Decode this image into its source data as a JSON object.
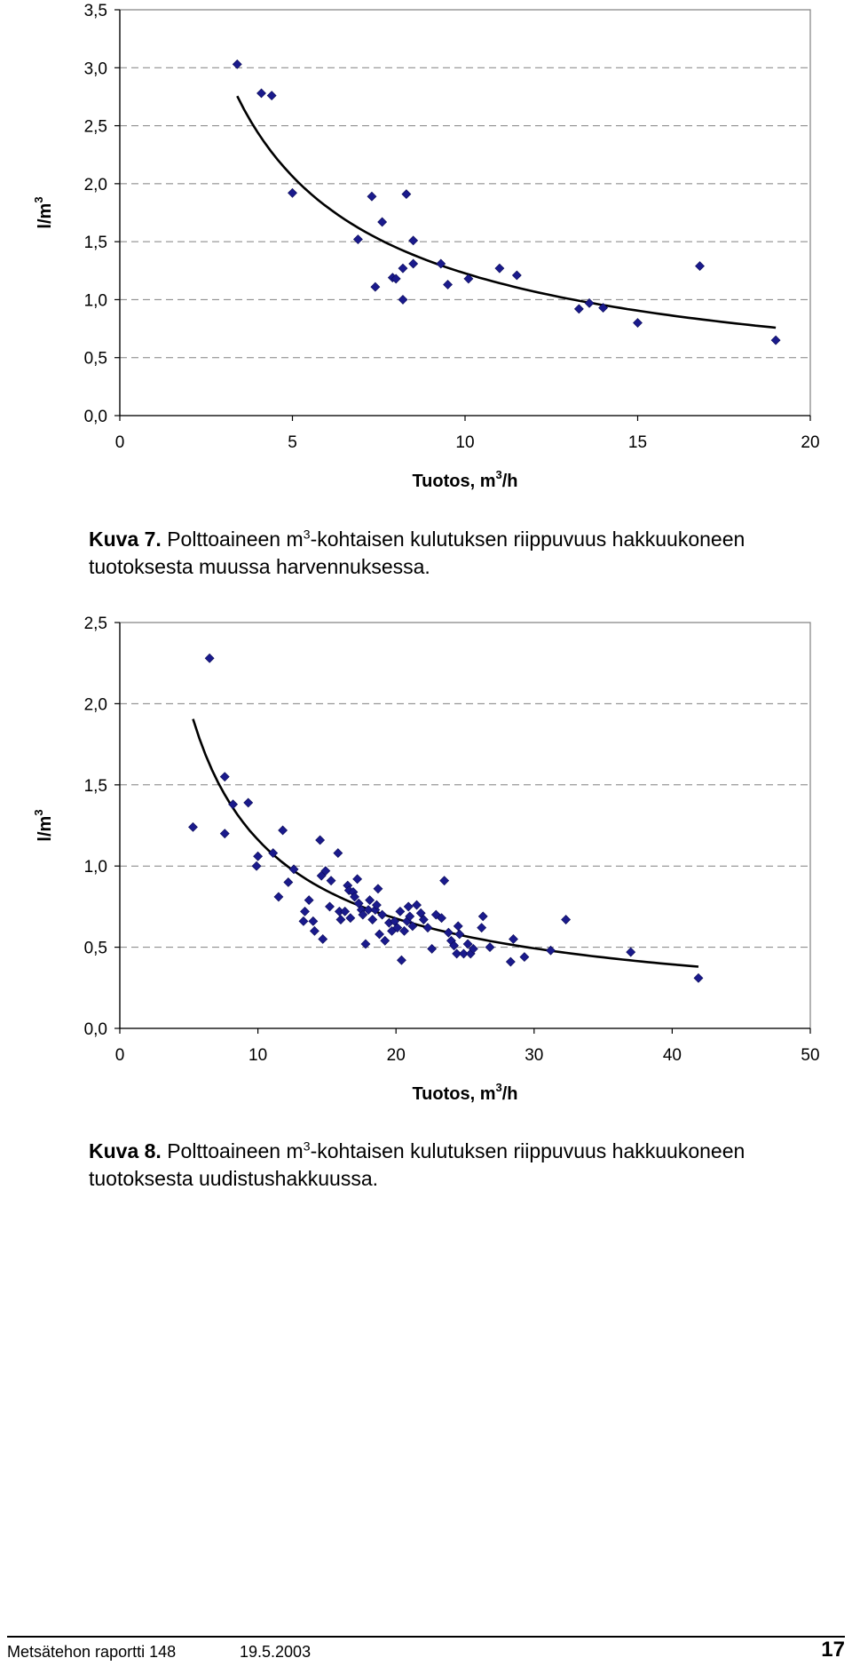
{
  "chart_data": [
    {
      "type": "scatter",
      "title": "",
      "xlabel": "Tuotos, m",
      "xlabel_sup": "3",
      "xlabel_suffix": "/h",
      "ylabel": "l/m",
      "ylabel_sup": "3",
      "xlim": [
        0,
        20
      ],
      "ylim": [
        0,
        3.5
      ],
      "xticks": [
        "0",
        "5",
        "10",
        "15",
        "20"
      ],
      "yticks": [
        "0,0",
        "0,5",
        "1,0",
        "1,5",
        "2,0",
        "2,5",
        "3,0",
        "3,5"
      ],
      "grid": "horizontal dashed",
      "marker_color": "#1a1a8c",
      "series": [
        {
          "points": [
            [
              3.4,
              3.03
            ],
            [
              4.1,
              2.78
            ],
            [
              4.4,
              2.76
            ],
            [
              5.0,
              1.92
            ],
            [
              6.9,
              1.52
            ],
            [
              7.3,
              1.89
            ],
            [
              7.4,
              1.11
            ],
            [
              7.6,
              1.67
            ],
            [
              7.9,
              1.19
            ],
            [
              8.0,
              1.18
            ],
            [
              8.2,
              1.0
            ],
            [
              8.2,
              1.27
            ],
            [
              8.3,
              1.91
            ],
            [
              8.5,
              1.51
            ],
            [
              8.5,
              1.31
            ],
            [
              9.3,
              1.31
            ],
            [
              9.5,
              1.13
            ],
            [
              10.1,
              1.18
            ],
            [
              11.0,
              1.27
            ],
            [
              11.5,
              1.21
            ],
            [
              13.3,
              0.92
            ],
            [
              13.6,
              0.97
            ],
            [
              14.0,
              0.93
            ],
            [
              15.0,
              0.8
            ],
            [
              16.8,
              1.29
            ],
            [
              19.0,
              0.65
            ]
          ]
        }
      ],
      "trendline": {
        "type": "power",
        "a": 6.9,
        "b": -0.75,
        "x_from": 3.4,
        "x_to": 19.0
      }
    },
    {
      "type": "scatter",
      "title": "",
      "xlabel": "Tuotos, m",
      "xlabel_sup": "3",
      "xlabel_suffix": "/h",
      "ylabel": "l/m",
      "ylabel_sup": "3",
      "xlim": [
        0,
        50
      ],
      "ylim": [
        0,
        2.5
      ],
      "xticks": [
        "0",
        "10",
        "20",
        "30",
        "40",
        "50"
      ],
      "yticks": [
        "0,0",
        "0,5",
        "1,0",
        "1,5",
        "2,0",
        "2,5"
      ],
      "grid": "horizontal dashed",
      "marker_color": "#1a1a8c",
      "series": [
        {
          "points": [
            [
              5.3,
              1.24
            ],
            [
              6.5,
              2.28
            ],
            [
              7.6,
              1.55
            ],
            [
              7.6,
              1.2
            ],
            [
              8.2,
              1.38
            ],
            [
              9.3,
              1.39
            ],
            [
              9.9,
              1.0
            ],
            [
              10.0,
              1.06
            ],
            [
              11.1,
              1.08
            ],
            [
              11.5,
              0.81
            ],
            [
              11.8,
              1.22
            ],
            [
              12.2,
              0.9
            ],
            [
              12.6,
              0.98
            ],
            [
              13.3,
              0.66
            ],
            [
              13.4,
              0.72
            ],
            [
              13.7,
              0.79
            ],
            [
              14.0,
              0.66
            ],
            [
              14.1,
              0.6
            ],
            [
              14.5,
              1.16
            ],
            [
              14.6,
              0.94
            ],
            [
              14.7,
              0.55
            ],
            [
              14.9,
              0.97
            ],
            [
              15.2,
              0.75
            ],
            [
              15.3,
              0.91
            ],
            [
              15.8,
              1.08
            ],
            [
              15.9,
              0.72
            ],
            [
              16.0,
              0.67
            ],
            [
              16.3,
              0.72
            ],
            [
              16.5,
              0.88
            ],
            [
              16.6,
              0.85
            ],
            [
              16.7,
              0.68
            ],
            [
              16.9,
              0.84
            ],
            [
              17.0,
              0.81
            ],
            [
              17.2,
              0.92
            ],
            [
              17.3,
              0.77
            ],
            [
              17.5,
              0.73
            ],
            [
              17.6,
              0.7
            ],
            [
              17.8,
              0.52
            ],
            [
              18.0,
              0.73
            ],
            [
              18.1,
              0.79
            ],
            [
              18.3,
              0.67
            ],
            [
              18.5,
              0.73
            ],
            [
              18.6,
              0.76
            ],
            [
              18.7,
              0.86
            ],
            [
              18.8,
              0.58
            ],
            [
              19.0,
              0.7
            ],
            [
              19.2,
              0.54
            ],
            [
              19.5,
              0.65
            ],
            [
              19.7,
              0.6
            ],
            [
              19.9,
              0.66
            ],
            [
              20.1,
              0.62
            ],
            [
              20.3,
              0.72
            ],
            [
              20.4,
              0.42
            ],
            [
              20.6,
              0.6
            ],
            [
              20.8,
              0.66
            ],
            [
              20.9,
              0.75
            ],
            [
              21.0,
              0.69
            ],
            [
              21.2,
              0.63
            ],
            [
              21.5,
              0.76
            ],
            [
              21.8,
              0.71
            ],
            [
              22.0,
              0.67
            ],
            [
              22.3,
              0.62
            ],
            [
              22.6,
              0.49
            ],
            [
              22.9,
              0.7
            ],
            [
              23.3,
              0.68
            ],
            [
              23.5,
              0.91
            ],
            [
              23.8,
              0.59
            ],
            [
              24.0,
              0.54
            ],
            [
              24.2,
              0.51
            ],
            [
              24.4,
              0.46
            ],
            [
              24.5,
              0.63
            ],
            [
              24.6,
              0.58
            ],
            [
              24.9,
              0.46
            ],
            [
              25.2,
              0.52
            ],
            [
              25.4,
              0.46
            ],
            [
              25.6,
              0.49
            ],
            [
              26.2,
              0.62
            ],
            [
              26.3,
              0.69
            ],
            [
              26.8,
              0.5
            ],
            [
              28.3,
              0.41
            ],
            [
              28.5,
              0.55
            ],
            [
              29.3,
              0.44
            ],
            [
              31.2,
              0.48
            ],
            [
              32.3,
              0.67
            ],
            [
              37.0,
              0.47
            ],
            [
              41.9,
              0.31
            ]
          ]
        }
      ],
      "trendline": {
        "type": "power",
        "a": 7.0,
        "b": -0.78,
        "x_from": 5.3,
        "x_to": 41.9
      }
    }
  ],
  "captions": [
    {
      "label": "Kuva 7.",
      "text_before": " Polttoaineen m",
      "sup": "3",
      "text_after": "-kohtaisen kulutuksen riippuvuus hakkuukoneen tuotoksesta muussa harvennuksessa."
    },
    {
      "label": "Kuva 8.",
      "text_before": " Polttoaineen m",
      "sup": "3",
      "text_after": "-kohtaisen kulutuksen riippuvuus hakkuukoneen tuotoksesta uudistushakkuussa."
    }
  ],
  "footer": {
    "report": "Metsätehon raportti  148",
    "date": "19.5.2003",
    "page": "17"
  }
}
